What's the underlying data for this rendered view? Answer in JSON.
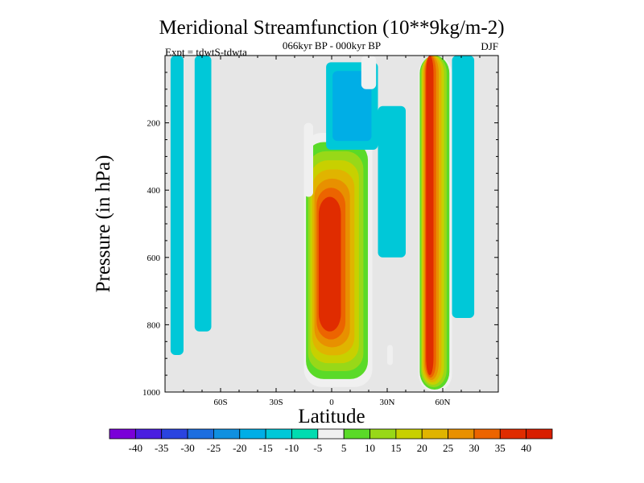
{
  "chart_data": {
    "type": "heatmap",
    "title": "Meridional Streamfunction (10**9kg/m-2)",
    "subtitle": "066kyr BP - 000kyr BP",
    "left_label": "Expt = tdwtS-tdwta",
    "right_label": "DJF",
    "xlabel": "Latitude",
    "ylabel": "Pressure (in hPa)",
    "xlim": [
      -90,
      90
    ],
    "ylim": [
      1000,
      0
    ],
    "x_ticks": [
      {
        "value": -60,
        "label": "60S"
      },
      {
        "value": -30,
        "label": "30S"
      },
      {
        "value": 0,
        "label": "0"
      },
      {
        "value": 30,
        "label": "30N"
      },
      {
        "value": 60,
        "label": "60N"
      }
    ],
    "y_ticks": [
      {
        "value": 200,
        "label": "200"
      },
      {
        "value": 400,
        "label": "400"
      },
      {
        "value": 600,
        "label": "600"
      },
      {
        "value": 800,
        "label": "800"
      },
      {
        "value": 1000,
        "label": "1000"
      }
    ],
    "background_color": "#e6e6e6",
    "colorbar": {
      "labels": [
        "-40",
        "-35",
        "-30",
        "-25",
        "-20",
        "-15",
        "-10",
        "-5",
        "5",
        "10",
        "15",
        "20",
        "25",
        "30",
        "35",
        "40"
      ],
      "colors": [
        "#7a00d8",
        "#4a1ee0",
        "#2a44e0",
        "#1c6ee0",
        "#1090e0",
        "#00aee6",
        "#00c8d8",
        "#00dcb0",
        "#f0f0f0",
        "#5ada28",
        "#98d818",
        "#c8d000",
        "#e0b400",
        "#e89000",
        "#ec6400",
        "#e02c00",
        "#d81e00"
      ]
    },
    "contours": [
      {
        "name": "sh-high-lat-cyan-band",
        "level": "-10",
        "lat_range": [
          -87,
          -80
        ],
        "p_range": [
          0,
          890
        ]
      },
      {
        "name": "sh-lat-70-cyan-band",
        "level": "-10",
        "lat_range": [
          -74,
          -65
        ],
        "p_range": [
          0,
          820
        ]
      },
      {
        "name": "sh-thin-cyan-strip",
        "level": "-10",
        "lat_range": [
          -71,
          -69
        ],
        "p_range": [
          0,
          25
        ]
      },
      {
        "name": "equatorial-cell",
        "levels": [
          "5",
          "10",
          "15",
          "20",
          "25",
          "30",
          "35",
          "40"
        ],
        "lat_range": [
          -15,
          22
        ],
        "p_range": [
          230,
          985
        ],
        "peak_level": "40",
        "peak_lat_range": [
          -7,
          5
        ],
        "peak_p_range": [
          420,
          820
        ]
      },
      {
        "name": "nh-subtropical-plume",
        "level": "5",
        "lat_range": [
          -15,
          -10
        ],
        "p_range": [
          200,
          420
        ]
      },
      {
        "name": "upper-tropical-cyan",
        "levels": [
          "-10",
          "-15"
        ],
        "lat_range": [
          -3,
          25
        ],
        "p_range": [
          20,
          280
        ]
      },
      {
        "name": "nh-20n-strip",
        "level": "5",
        "lat_range": [
          16,
          24
        ],
        "p_range": [
          0,
          100
        ]
      },
      {
        "name": "nh-midlat-cyan",
        "level": "-10",
        "lat_range": [
          25,
          40
        ],
        "p_range": [
          150,
          600
        ]
      },
      {
        "name": "nh-midlat-green-patch",
        "level": "5",
        "lat_range": [
          30,
          33
        ],
        "p_range": [
          860,
          920
        ]
      },
      {
        "name": "nh-55n-cell",
        "levels": [
          "5",
          "10",
          "15",
          "20",
          "25",
          "30",
          "35",
          "40"
        ],
        "lat_range": [
          47,
          65
        ],
        "p_range": [
          0,
          1000
        ],
        "peak_level": "40",
        "peak_lat_range": [
          51,
          55
        ],
        "peak_p_range": [
          0,
          950
        ]
      },
      {
        "name": "nh-high-lat-cyan",
        "level": "-10",
        "lat_range": [
          65,
          77
        ],
        "p_range": [
          0,
          780
        ]
      }
    ]
  }
}
